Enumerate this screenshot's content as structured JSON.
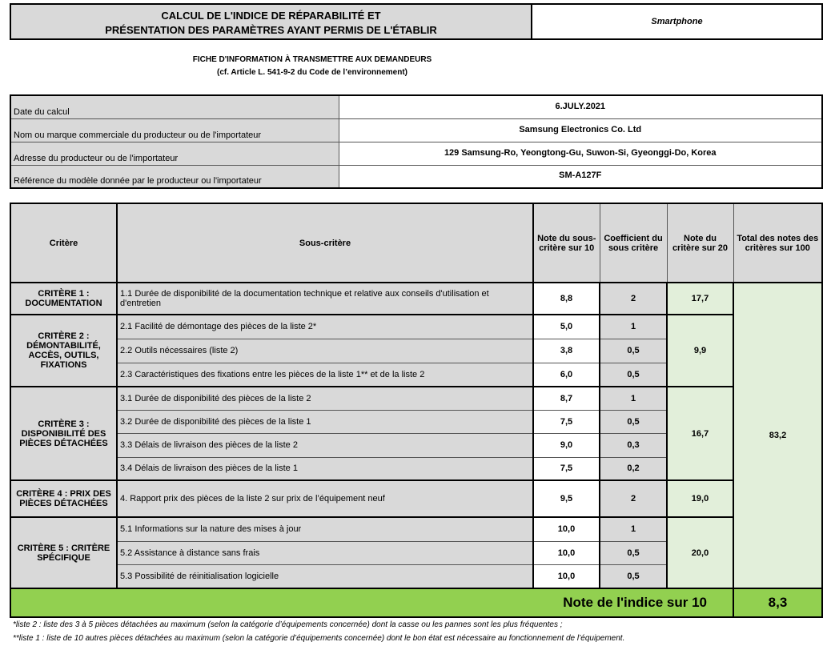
{
  "header": {
    "title_line1": "CALCUL DE L'INDICE DE RÉPARABILITÉ ET",
    "title_line2": "PRÉSENTATION DES PARAMÈTRES AYANT PERMIS DE L'ÉTABLIR",
    "product_type": "Smartphone"
  },
  "subtitle": {
    "line1": "FICHE D'INFORMATION À TRANSMETTRE AUX DEMANDEURS",
    "line2": "(cf. Article L. 541-9-2 du Code de l’environnement)"
  },
  "info": [
    {
      "label": "Date du calcul",
      "value": "6.JULY.2021"
    },
    {
      "label": "Nom ou marque commerciale du producteur ou de l'importateur",
      "value": "Samsung Electronics Co. Ltd"
    },
    {
      "label": "Adresse du producteur ou de l'importateur",
      "value": "129 Samsung-Ro, Yeongtong-Gu, Suwon-Si, Gyeonggi-Do, Korea"
    },
    {
      "label": "Référence du modèle donnée par le producteur ou l'importateur",
      "value": "SM-A127F"
    }
  ],
  "table": {
    "headers": [
      "Critère",
      "Sous-critère",
      "Note du sous-critère sur 10",
      "Coefficient du sous critère",
      "Note du critère sur 20",
      "Total des notes des critères sur 100"
    ],
    "total": "83,2",
    "criteria": [
      {
        "name": "CRITÈRE 1 : DOCUMENTATION",
        "score": "17,7",
        "subs": [
          {
            "label": "1.1 Durée de disponibilité de la documentation technique et relative aux conseils d'utilisation et d'entretien",
            "note": "8,8",
            "coef": "2"
          }
        ]
      },
      {
        "name": "CRITÈRE 2 : DÉMONTABILITÉ, ACCÈS, OUTILS, FIXATIONS",
        "score": "9,9",
        "subs": [
          {
            "label": "2.1 Facilité de démontage des pièces de la liste 2*",
            "note": "5,0",
            "coef": "1"
          },
          {
            "label": "2.2 Outils nécessaires (liste 2)",
            "note": "3,8",
            "coef": "0,5"
          },
          {
            "label": "2.3 Caractéristiques des fixations entre les pièces de la liste 1** et de la liste 2",
            "note": "6,0",
            "coef": "0,5"
          }
        ]
      },
      {
        "name": "CRITÈRE 3 : DISPONIBILITÉ DES PIÈCES DÉTACHÉES",
        "score": "16,7",
        "subs": [
          {
            "label": "3.1 Durée de disponibilité des pièces de la liste 2",
            "note": "8,7",
            "coef": "1"
          },
          {
            "label": "3.2 Durée de disponibilité des pièces de la liste 1",
            "note": "7,5",
            "coef": "0,5"
          },
          {
            "label": "3.3 Délais de livraison des pièces de la liste 2",
            "note": "9,0",
            "coef": "0,3"
          },
          {
            "label": "3.4 Délais de livraison des pièces de la liste 1",
            "note": "7,5",
            "coef": "0,2"
          }
        ]
      },
      {
        "name": "CRITÈRE 4 : PRIX DES PIÈCES DÉTACHÉES",
        "score": "19,0",
        "subs": [
          {
            "label": "4. Rapport prix des pièces de la liste 2 sur prix de l’équipement neuf",
            "note": "9,5",
            "coef": "2"
          }
        ]
      },
      {
        "name": "CRITÈRE 5 : CRITÈRE SPÉCIFIQUE",
        "score": "20,0",
        "subs": [
          {
            "label": "5.1 Informations sur la nature des mises à jour",
            "note": "10,0",
            "coef": "1"
          },
          {
            "label": "5.2 Assistance à distance sans frais",
            "note": "10,0",
            "coef": "0,5"
          },
          {
            "label": "5.3 Possibilité de réinitialisation logicielle",
            "note": "10,0",
            "coef": "0,5"
          }
        ]
      }
    ],
    "index_label": "Note de l'indice sur 10",
    "index_value": "8,3"
  },
  "footnotes": [
    "*liste 2 : liste des 3 à 5 pièces détachées au maximum (selon la catégorie d’équipements concernée) dont la casse ou les pannes sont les plus fréquentes ;",
    "**liste 1 : liste de 10 autres pièces détachées au maximum (selon la catégorie d’équipements concernée) dont le bon état est nécessaire au fonctionnement de l’équipement."
  ],
  "colors": {
    "header_gray": "#d9d9d9",
    "score_green": "#e2efda",
    "index_green": "#92d050"
  }
}
